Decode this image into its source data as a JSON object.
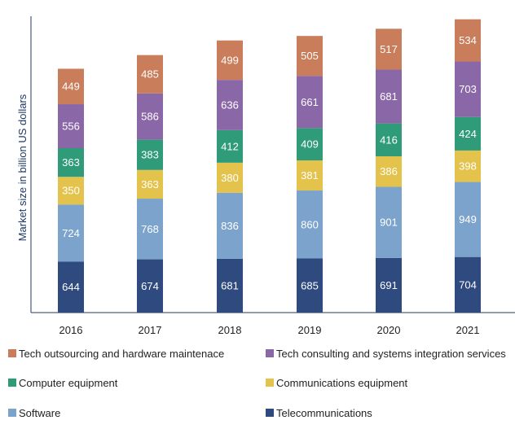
{
  "chart_data": {
    "type": "bar",
    "stacked": true,
    "title": "",
    "xlabel": "",
    "ylabel": "Market size in billion US dollars",
    "categories": [
      "2016",
      "2017",
      "2018",
      "2019",
      "2020",
      "2021"
    ],
    "series": [
      {
        "name": "Telecommunications",
        "color": "#2e4a7f",
        "values": [
          644,
          674,
          681,
          685,
          691,
          704
        ]
      },
      {
        "name": "Software",
        "color": "#7ba3cc",
        "values": [
          724,
          768,
          836,
          860,
          901,
          949
        ]
      },
      {
        "name": "Communications equipment",
        "color": "#e3c34b",
        "values": [
          350,
          363,
          380,
          381,
          386,
          398
        ]
      },
      {
        "name": "Computer equipment",
        "color": "#2f9b78",
        "values": [
          363,
          383,
          412,
          409,
          416,
          424
        ]
      },
      {
        "name": "Tech consulting and systems integration services",
        "color": "#8a68a8",
        "values": [
          556,
          586,
          636,
          661,
          681,
          703
        ]
      },
      {
        "name": "Tech outsourcing and hardware maintenace",
        "color": "#c97d5a",
        "values": [
          449,
          485,
          499,
          505,
          517,
          534
        ]
      }
    ],
    "ylim": [
      0,
      3750
    ],
    "grid": false,
    "legend_position": "bottom",
    "legend_order": [
      "Tech outsourcing and hardware maintenace",
      "Tech consulting and systems integration services",
      "Computer equipment",
      "Communications equipment",
      "Software",
      "Telecommunications"
    ]
  }
}
